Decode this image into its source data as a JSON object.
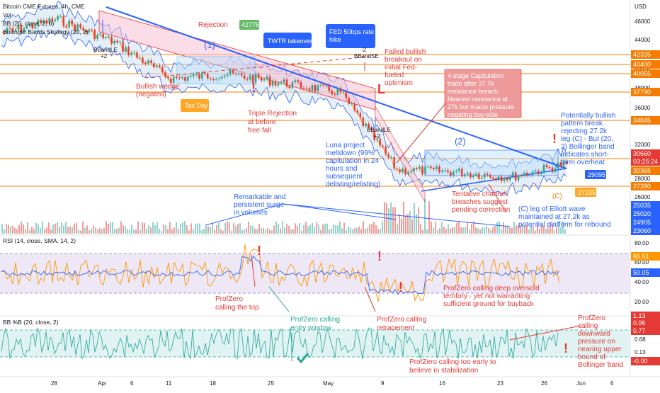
{
  "legend": {
    "main": "Bitcoin CME Futures, 4h, CME",
    "vol": "Vol",
    "bb": "BB (20, close, 2, 0)",
    "bbstrat": "Bollinger Bands Strategy (20, 2)",
    "rsi": "RSI (14, close, SMA, 14, 2)",
    "bbp": "BB %B (20, close, 2)"
  },
  "colors": {
    "accent_blue": "#2962ff",
    "red": "#e53935",
    "green": "#26a69a",
    "orange": "#ff9800",
    "bb_fill": "#cfe2f3",
    "rsi_fill": "#ede7f6",
    "bbp_fill": "#e0f2f1",
    "price_tag_orange": "#f57c00",
    "price_tag_blue": "#2962ff",
    "price_tag_red": "#e53935"
  },
  "axis": {
    "currency": "USD",
    "main_ticks": [
      "46000",
      "44000",
      "40000",
      "38000",
      "36000",
      "32000",
      "30000",
      "28000",
      "26000",
      "24000"
    ],
    "rsi_ticks": [
      "80.00",
      "60.00",
      "40.00",
      "20.00"
    ],
    "bbp_ticks": [
      "0.77",
      "0.68",
      "0.13"
    ],
    "x_ticks": [
      "28",
      "Apr",
      "6",
      "11",
      "18",
      "25",
      "May",
      "9",
      "16",
      "23",
      "26",
      "Jun",
      "6"
    ]
  },
  "price_tags": [
    {
      "value": "42335",
      "color": "#f57c00"
    },
    {
      "value": "40400",
      "color": "#f57c00"
    },
    {
      "value": "40055",
      "color": "#f57c00"
    },
    {
      "value": "37790",
      "color": "#f57c00"
    },
    {
      "value": "34845",
      "color": "#f57c00"
    },
    {
      "value": "30660",
      "color": "#e53935"
    },
    {
      "value": "03:25:24",
      "color": "#e53935"
    },
    {
      "value": "30365",
      "color": "#f57c00"
    },
    {
      "value": "27280",
      "color": "#f57c00"
    },
    {
      "value": "25035",
      "color": "#2962ff"
    },
    {
      "value": "25020",
      "color": "#2962ff"
    },
    {
      "value": "24905",
      "color": "#2962ff"
    },
    {
      "value": "23060",
      "color": "#2962ff"
    }
  ],
  "bbp_tags": [
    {
      "value": "1.13",
      "color": "#e53935"
    },
    {
      "value": "0.96",
      "color": "#e53935"
    },
    {
      "value": "0.77",
      "color": "#e53935"
    },
    {
      "value": "-0.00",
      "color": "#e53935"
    }
  ],
  "rsi_tags": [
    {
      "value": "65.61",
      "color": "#ff9800"
    },
    {
      "value": "50.05",
      "color": "#2962ff"
    }
  ],
  "chart_data": {
    "type": "line",
    "series": [
      {
        "x": [
          "28",
          "Apr",
          "6",
          "11",
          "18",
          "25",
          "May",
          "9",
          "16",
          "23",
          "Jun"
        ],
        "values": [
          45000,
          46500,
          44000,
          40000,
          40500,
          39500,
          38500,
          30000,
          29800,
          29200,
          30660
        ]
      }
    ],
    "ylim": [
      23000,
      48000
    ]
  },
  "annotations": {
    "rejection": "Rejection",
    "wave1": "(1)",
    "wave2": "(2)",
    "waveC": "(C)",
    "twtr": "TWTR takeover",
    "fed": "FED 50bps rate hike",
    "badge_42775": "42775",
    "tax_day": "Tax Day",
    "bullish_wedge": "Bullish wedge (negated)",
    "triple_rejection": "Triple Rejection at before free fall",
    "failed_breakout": "Failed bullish breakout on initial Fed-fueled optimism",
    "capitulation": "4-stage Capitulation trade after 37.7k resistance breach Nearest resistance at 27k but macro pressure negating buy-side",
    "potentially_bullish": "Potentially bullish pattern break rejecting 27.2k leg (C) - But (20, 2) Bollinger band indicates short-term overheat",
    "luna": "Luna project meltdown (99% capitulation in 24 hours and subsequent delisting/relisting)",
    "tentative": "Tentative channel breaches suggest pending correction",
    "remarkable": "Remarkable and persistent surge in volumes",
    "elliott": "(C) leg of Elliott wave maintained at 27.2k as potential platform for rebound",
    "badge_29095": "29095",
    "badge_27235": "27235",
    "bbandle1": "BBandLE +2",
    "bbandle2": "BBandLE +2",
    "bbandse": "-2 BBandSE",
    "pz_top": "ProfZero calling the top",
    "pz_oversold": "ProfZero calling deep oversold territory - yet not warranting sufficient ground for buyback",
    "pz_entry": "ProfZero calling entry window",
    "pz_retrace": "ProfZero calling retracement",
    "pz_early": "ProfZero calling too early to believe in stabilization",
    "pz_downward": "ProfZero calling downward pressure on nearing upper bound of Bollinger band"
  }
}
